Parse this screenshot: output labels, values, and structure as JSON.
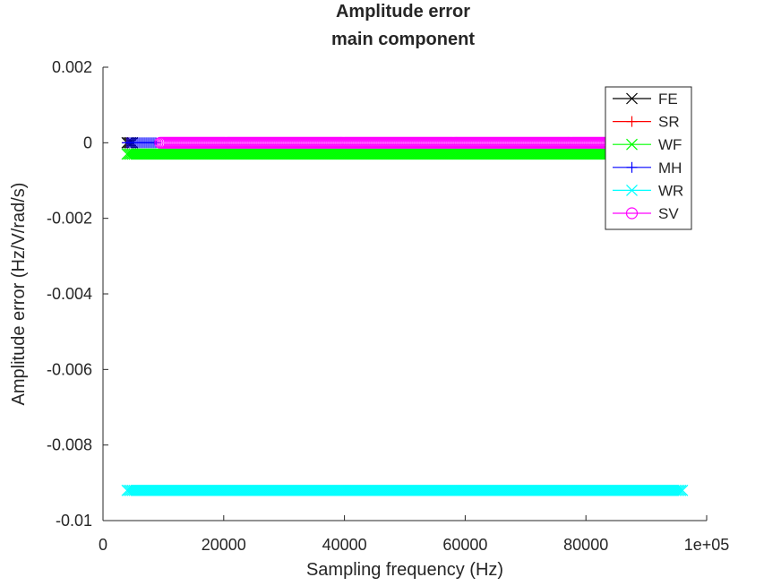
{
  "chart_data": {
    "type": "scatter",
    "title": [
      "Amplitude error",
      "main component"
    ],
    "xlabel": "Sampling frequency (Hz)",
    "ylabel": "Amplitude error (Hz/V/rad/s)",
    "xlim": [
      0,
      100000
    ],
    "ylim": [
      -0.01,
      0.002
    ],
    "xticks": [
      0,
      20000,
      40000,
      60000,
      80000,
      100000
    ],
    "xtick_labels": [
      "0",
      "20000",
      "40000",
      "60000",
      "80000",
      "1e+05"
    ],
    "yticks": [
      -0.01,
      -0.008,
      -0.006,
      -0.004,
      -0.002,
      0,
      0.002
    ],
    "ytick_labels": [
      "-0.01",
      "-0.008",
      "-0.006",
      "-0.004",
      "-0.002",
      "0",
      "0.002"
    ],
    "grid": false,
    "legend_position": "top-right",
    "series": [
      {
        "name": "FE",
        "color": "#000000",
        "marker": "x",
        "x_range": [
          4000,
          5000
        ],
        "y": 0
      },
      {
        "name": "SR",
        "color": "#ff0000",
        "marker": "+",
        "x_range": [
          4000,
          4500
        ],
        "y": 0
      },
      {
        "name": "WF",
        "color": "#00ff00",
        "marker": "x",
        "x_range": [
          4000,
          84000
        ],
        "y": -0.0003
      },
      {
        "name": "MH",
        "color": "#0000ff",
        "marker": "+",
        "x_range": [
          4000,
          9000
        ],
        "y": 0
      },
      {
        "name": "WR",
        "color": "#00ffff",
        "marker": "x",
        "x_range": [
          4000,
          96000
        ],
        "y": -0.0092
      },
      {
        "name": "SV",
        "color": "#ff00ff",
        "marker": "o",
        "x_range": [
          9500,
          84000
        ],
        "y": 0
      }
    ]
  }
}
